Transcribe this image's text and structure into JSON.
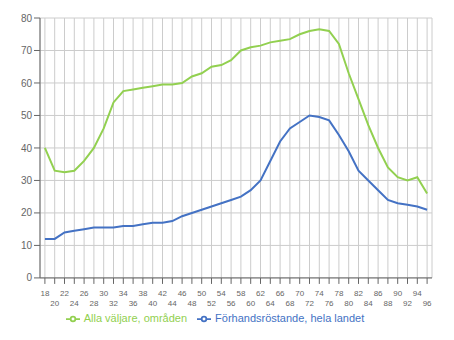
{
  "chart_data": {
    "type": "line",
    "x": [
      18,
      20,
      22,
      24,
      26,
      28,
      30,
      32,
      34,
      36,
      38,
      40,
      42,
      44,
      46,
      48,
      50,
      52,
      54,
      56,
      58,
      60,
      62,
      64,
      66,
      68,
      70,
      72,
      74,
      76,
      78,
      80,
      82,
      84,
      86,
      88,
      90,
      92,
      94,
      96
    ],
    "series": [
      {
        "name": "Förhandsröstande, hela landet",
        "color": "#4472C4",
        "values": [
          12,
          12,
          14,
          14.5,
          15,
          15.5,
          15.5,
          15.5,
          16,
          16,
          16.5,
          17,
          17,
          17.5,
          19,
          20,
          21,
          22,
          23,
          24,
          25,
          27,
          30,
          36,
          42,
          46,
          48,
          50,
          49.5,
          48.5,
          44,
          39,
          33,
          30,
          27,
          24,
          23,
          22.5,
          22,
          21
        ]
      },
      {
        "name": "Alla väljare, områden",
        "color": "#92D050",
        "values": [
          40,
          33,
          32.5,
          33,
          36,
          40,
          46,
          54,
          57.5,
          58,
          58.5,
          59,
          59.5,
          59.5,
          60,
          62,
          63,
          65,
          65.5,
          67,
          70,
          71,
          71.5,
          72.5,
          73,
          73.5,
          75,
          76,
          76.5,
          76,
          72,
          63,
          55,
          47,
          40,
          34,
          31,
          30,
          31,
          26
        ]
      }
    ],
    "xlim": [
      17,
      97
    ],
    "xticks": [
      18,
      20,
      22,
      24,
      26,
      28,
      30,
      32,
      34,
      36,
      38,
      40,
      42,
      44,
      46,
      48,
      50,
      52,
      54,
      56,
      58,
      60,
      62,
      64,
      66,
      68,
      70,
      72,
      74,
      76,
      78,
      80,
      82,
      84,
      86,
      88,
      90,
      92,
      94,
      96
    ],
    "ylim": [
      0,
      80
    ],
    "yticks": [
      0,
      10,
      20,
      30,
      40,
      50,
      60,
      70,
      80
    ],
    "grid": true,
    "legend": "bottom"
  }
}
